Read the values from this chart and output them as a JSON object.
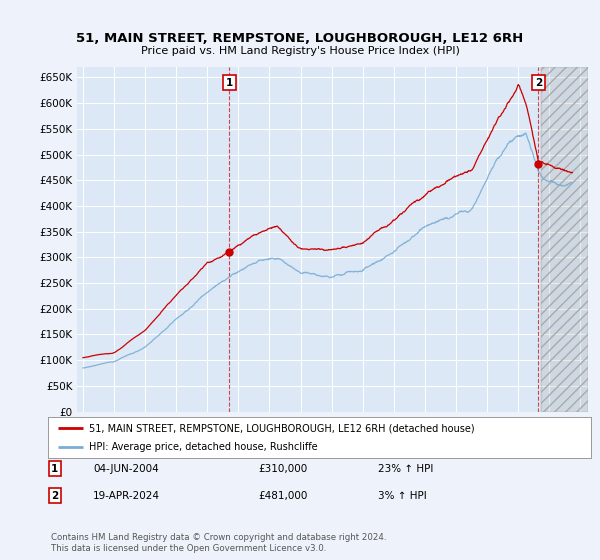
{
  "title1": "51, MAIN STREET, REMPSTONE, LOUGHBOROUGH, LE12 6RH",
  "title2": "Price paid vs. HM Land Registry's House Price Index (HPI)",
  "legend_line1": "51, MAIN STREET, REMPSTONE, LOUGHBOROUGH, LE12 6RH (detached house)",
  "legend_line2": "HPI: Average price, detached house, Rushcliffe",
  "annotation1_date": "04-JUN-2004",
  "annotation1_price": "£310,000",
  "annotation1_hpi": "23% ↑ HPI",
  "annotation2_date": "19-APR-2024",
  "annotation2_price": "£481,000",
  "annotation2_hpi": "3% ↑ HPI",
  "footnote": "Contains HM Land Registry data © Crown copyright and database right 2024.\nThis data is licensed under the Open Government Licence v3.0.",
  "line1_color": "#cc0000",
  "line2_color": "#7aadd4",
  "background_color": "#eef2fa",
  "plot_bg_color": "#dce8f5",
  "grid_color": "#ffffff",
  "ylim": [
    0,
    670000
  ],
  "yticks": [
    0,
    50000,
    100000,
    150000,
    200000,
    250000,
    300000,
    350000,
    400000,
    450000,
    500000,
    550000,
    600000,
    650000
  ],
  "sale1_x": 2004.42,
  "sale1_y": 310000,
  "sale2_x": 2024.3,
  "sale2_y": 481000,
  "xmin": 1994.6,
  "xmax": 2027.5,
  "data_end_x": 2024.5
}
